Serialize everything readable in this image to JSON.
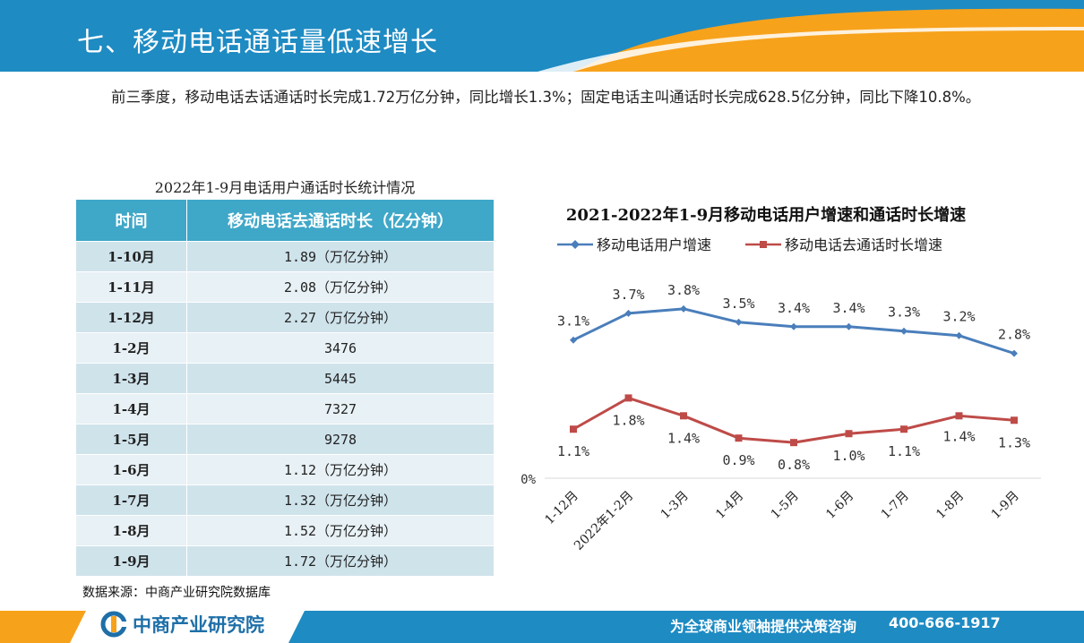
{
  "header": {
    "title": "七、移动电话通话量低速增长"
  },
  "intro": {
    "text": "前三季度，移动电话去话通话时长完成1.72万亿分钟，同比增长1.3%；固定电话主叫通话时长完成628.5亿分钟，同比下降10.8%。"
  },
  "table": {
    "caption": "2022年1-9月电话用户通话时长统计情况",
    "headers": [
      "时间",
      "移动电话去通话时长（亿分钟）"
    ],
    "rows": [
      [
        "1-10月",
        "1.89（万亿分钟）"
      ],
      [
        "1-11月",
        "2.08（万亿分钟）"
      ],
      [
        "1-12月",
        "2.27（万亿分钟）"
      ],
      [
        "1-2月",
        "3476"
      ],
      [
        "1-3月",
        "5445"
      ],
      [
        "1-4月",
        "7327"
      ],
      [
        "1-5月",
        "9278"
      ],
      [
        "1-6月",
        "1.12（万亿分钟）"
      ],
      [
        "1-7月",
        "1.32（万亿分钟）"
      ],
      [
        "1-8月",
        "1.52（万亿分钟）"
      ],
      [
        "1-9月",
        "1.72（万亿分钟）"
      ]
    ]
  },
  "source": {
    "text": "数据来源：中商产业研究院数据库"
  },
  "chart_data": {
    "type": "line",
    "title": "2021-2022年1-9月移动电话用户增速和通话时长增速",
    "categories": [
      "1-12月",
      "2022年1-2月",
      "1-3月",
      "1-4月",
      "1-5月",
      "1-6月",
      "1-7月",
      "1-8月",
      "1-9月"
    ],
    "series": [
      {
        "name": "移动电话用户增速",
        "values": [
          3.1,
          3.7,
          3.8,
          3.5,
          3.4,
          3.4,
          3.3,
          3.2,
          2.8
        ],
        "labels": [
          "3.1%",
          "3.7%",
          "3.8%",
          "3.5%",
          "3.4%",
          "3.4%",
          "3.3%",
          "3.2%",
          "2.8%"
        ],
        "color": "#4a7ebb",
        "marker": "diamond"
      },
      {
        "name": "移动电话去通话时长增速",
        "values": [
          1.1,
          1.8,
          1.4,
          0.9,
          0.8,
          1.0,
          1.1,
          1.4,
          1.3
        ],
        "labels": [
          "1.1%",
          "1.8%",
          "1.4%",
          "0.9%",
          "0.8%",
          "1.0%",
          "1.1%",
          "1.4%",
          "1.3%"
        ],
        "color": "#be4b48",
        "marker": "square"
      }
    ],
    "y_tick_label": "0%",
    "ylim": [
      0,
      4.5
    ],
    "legend": "top",
    "grid": false
  },
  "footer": {
    "logo_text": "中商产业研究院",
    "slogan": "为全球商业领袖提供决策咨询",
    "phone": "400-666-1917"
  },
  "colors": {
    "primary_blue": "#1e8bc3",
    "accent_orange": "#f7a21b",
    "table_header": "#3fa7c8"
  }
}
